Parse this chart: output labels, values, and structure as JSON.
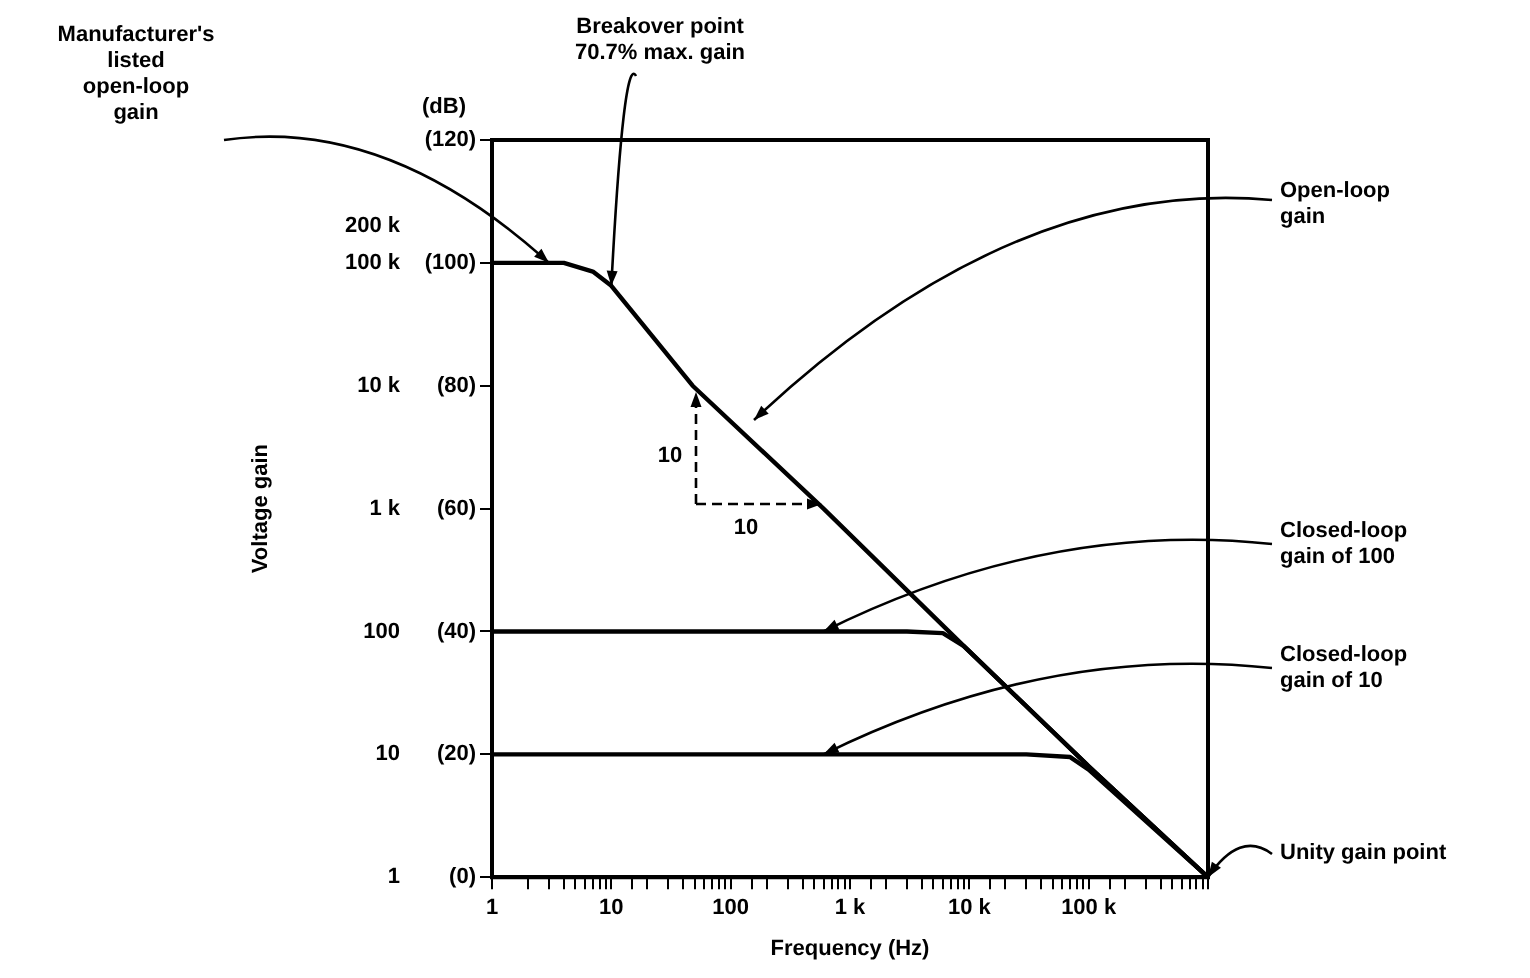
{
  "chart_data": {
    "type": "line",
    "xlabel": "Frequency (Hz)",
    "ylabel": "Voltage gain",
    "log": "xy",
    "xlim": [
      1,
      1000000
    ],
    "ylim": [
      1,
      1000000
    ],
    "xticks": [
      {
        "value": 1,
        "label": "1"
      },
      {
        "value": 10,
        "label": "10"
      },
      {
        "value": 100,
        "label": "100"
      },
      {
        "value": 1000,
        "label": "1 k"
      },
      {
        "value": 10000,
        "label": "10 k"
      },
      {
        "value": 100000,
        "label": "100 k"
      },
      {
        "value": 1000000,
        "label": null
      }
    ],
    "yticks": [
      1,
      10,
      100,
      {
        "value": 1000,
        "label": "1 k"
      },
      {
        "value": 10000,
        "label": "10 k"
      },
      {
        "value": 100000,
        "label": "100 k"
      },
      {
        "value": 200000,
        "label": "200 k"
      }
    ],
    "y2lim": [
      0,
      120
    ],
    "y2ticks": [
      {
        "value": 0,
        "label": "(0)"
      },
      {
        "value": 20,
        "label": "(20)"
      },
      {
        "value": 40,
        "label": "(40)"
      },
      {
        "value": 60,
        "label": "(60)"
      },
      {
        "value": 80,
        "label": "(80)"
      },
      {
        "value": 100,
        "label": "(100)"
      },
      {
        "value": 120,
        "label": "(120)"
      }
    ],
    "grid": false,
    "legend": false,
    "marker": "none",
    "line_style": "solid",
    "series": [
      {
        "color": "#000000",
        "x": [
          1,
          4,
          7,
          10,
          48,
          600,
          9000,
          100000,
          1000000
        ],
        "values": [
          100000,
          100000,
          85000,
          65000,
          10000,
          1000,
          76,
          8,
          1
        ]
      },
      {
        "color": "#000000",
        "x": [
          1,
          3000,
          6000,
          9000,
          100000,
          1000000
        ],
        "values": [
          100,
          100,
          97,
          76,
          8,
          1
        ]
      },
      {
        "color": "#000000",
        "x": [
          1,
          30000,
          70000,
          100000,
          1000000
        ],
        "values": [
          10,
          10,
          9.5,
          7.5,
          1
        ]
      }
    ],
    "annotations": [
      "(dB)",
      {
        "text": "Manufacturer's\nlisted\nopen-loop\ngain",
        "x": 3,
        "y": 100000
      },
      {
        "text": "Breakover point\n70.7% max. gain",
        "x": 10,
        "y": 65000
      },
      "Open-loop\ngain",
      {
        "text": "Closed-loop\ngain of 100",
        "x": 600,
        "y": 100
      },
      {
        "text": "Closed-loop\ngain of 10",
        "x": 600,
        "y": 10
      },
      {
        "text": "Unity gain point",
        "x": 1000000,
        "y": 1
      },
      "10",
      "10"
    ]
  }
}
